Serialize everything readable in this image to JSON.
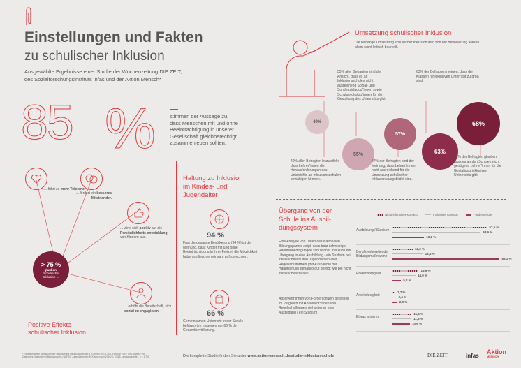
{
  "header": {
    "title_bold": "Einstellungen und Fakten",
    "title_light": "zu schulischer Inklusion",
    "subtitle_line1": "Ausgewählte Ergebnisse einer Studie der Wochenzeitung DIE ZEIT,",
    "subtitle_line2": "des Sozialforschungsinstituts infas und der Aktion Mensch*"
  },
  "big_stat": {
    "number": "85",
    "percent": "%",
    "text_lines": [
      "stimmen der Aussage zu,",
      "dass Menschen mit und ohne",
      "Beeinträchtigung in unserer",
      "Gesellschaft gleichberechtigt",
      "zusammenleben sollten."
    ]
  },
  "effects": {
    "heading_line1": "Positive Effekte",
    "heading_line2": "schulischer Inklusion",
    "center_value": "> 75 %",
    "center_line1": "glauben:",
    "center_line2": "Schulische",
    "center_line3": "Inklusion ...",
    "item1_pre": "... führt zu ",
    "item1_bold": "mehr Toleranz.",
    "item2_pre": "... fördert ein ",
    "item2_bold": "besseres Miteinander.",
    "item3_pre": "... wirkt sich ",
    "item3_bold1": "positiv",
    "item3_mid": " auf die ",
    "item3_bold2": "Persönlichkeits-entwicklung",
    "item3_post": " von Kindern aus.",
    "item4_pre": "... erhöht die Bereitschaft, sich ",
    "item4_bold": "sozial zu engagieren."
  },
  "haltung": {
    "heading_line1": "Haltung zu Inklusion",
    "heading_line2": "im Kindes- und",
    "heading_line3": "Jugendalter",
    "stat1_value": "94 %",
    "stat1_text": "Fast die gesamte Bevölkerung (94 %) ist der Meinung, dass Kinder mit und ohne Beeinträchtigung in ihrer Freizeit die Möglichkeit haben sollten, gemeinsam aufzuwachsen.",
    "stat2_value": "66 %",
    "stat2_text": "Gemeinsamen Unterricht in der Schule befürworten hingegen nur 66 % der Gesamtbevölkerung."
  },
  "umsetzung": {
    "heading": "Umsetzung schulischer Inklusion",
    "intro": "Die bisherige Umsetzung schulischer Inklusion wird von der Bevölkerung alles in allem recht kritisch beurteilt.",
    "c40": "40%",
    "c55": "55%",
    "c57": "57%",
    "c63": "63%",
    "c68": "68%",
    "t55": "55% aller Befragten sind der Ansicht, dass es an Inklusionsschulen nicht ausreichend Sozial- und Sonderpädagog*innen sowie Schulpsycholog*innen für die Gestaltung des Unterrichts gibt.",
    "t63": "63% der Befragten meinen, dass die Klassen für inklusiven Unterricht zu groß sind.",
    "t40": "40% aller Befragten bezweifeln, dass Lehrer*innen die Herausforderungen des Unterrichts an Inklusionsschulen bewältigen können.",
    "t57": "57% der Befragten sind der Meinung, dass Lehrer*innen nicht ausreichend für die Umsetzung schulischer Inklusion ausgebildet sind.",
    "t68": "68% der Befragten glauben, dass es an den Schulen nicht genügend Lehrer*innen für die Gestaltung inklusiven Unterrichts gibt."
  },
  "uebergang": {
    "heading_line1": "Übergang von der",
    "heading_line2": "Schule ins Ausbil-",
    "heading_line3": "dungssystem",
    "para1": "Eine Analyse von Daten des Nationalen Bildungspanels zeigt, dass trotz schwieriger Rahmenbedingungen schulischer Inklusion der Übergang in eine Ausbildung / ein Studium bei inklusiv beschulten Jugendlichen aller Regelschulformen (mit Ausnahme der Hauptschule) genauso gut gelingt wie bei nicht inklusiv Beschulten.",
    "para2": "Absolvent*innen von Förderschulen beginnen im Vergleich mit Absolvent*innen von Regelschulformen viel seltener eine Ausbildung / ein Studium."
  },
  "chart_data": {
    "type": "bar",
    "categories": [
      "Ausbildung / Studium",
      "Berufsvorbereitende Bildungsmaßnahme",
      "Erwerbstätigkeit",
      "Arbeitslosigkeit",
      "Etwas anderes"
    ],
    "series": [
      {
        "name": "Nicht inklusiver Kontext",
        "values": [
          57.5,
          12.3,
          15.9,
          1.7,
          11.6
        ],
        "labels": [
          "57,5 %",
          "12,3 %",
          "15,9 %",
          "1,7 %",
          "11,6 %"
        ]
      },
      {
        "name": "Inklusiver Kontext",
        "values": [
          53.6,
          18.5,
          14.0,
          2.4,
          11.5
        ],
        "labels": [
          "53,6 %",
          "18,5 %",
          "14,0 %",
          "2,4 %",
          "11,5 %"
        ]
      },
      {
        "name": "Förderschule",
        "values": [
          19.2,
          65.1,
          5.2,
          2.9,
          10.6
        ],
        "labels": [
          "19,2 %",
          "65,1 %",
          "5,2 %",
          "2,9 %",
          "10,6 %"
        ]
      }
    ],
    "colors": {
      "nicht_inklusiv": "#7a1f3a",
      "inklusiv": "#bbbbbb",
      "foerderschule": "#9b3a5a"
    }
  },
  "footer": {
    "footnote_line1": "* Repräsentative Befragung der Bevölkerung Deutschlands der 1 Kulturen, n = 1.500, Februar 2019, und Analyse von",
    "footnote_line2": "Daten des Nationalen Bildungspanels (NEPS): Jugendliche der 9. Klassen von 2010/11 (2016 Jahrgangsstufe), n = 1.715",
    "study_pre": "Die komplette Studie finden Sie unter ",
    "study_url": "www.aktion-mensch.de/studie-inklusion-schule",
    "logo_zeit": "DIE ZEIT",
    "logo_infas": "infas",
    "logo_aktion": "Aktion",
    "logo_mensch": "MENSCH"
  },
  "colors": {
    "accent": "#e03a3e",
    "dark": "#7a1f3a",
    "mid": "#9b3a5a",
    "light": "#d9b8c0"
  }
}
